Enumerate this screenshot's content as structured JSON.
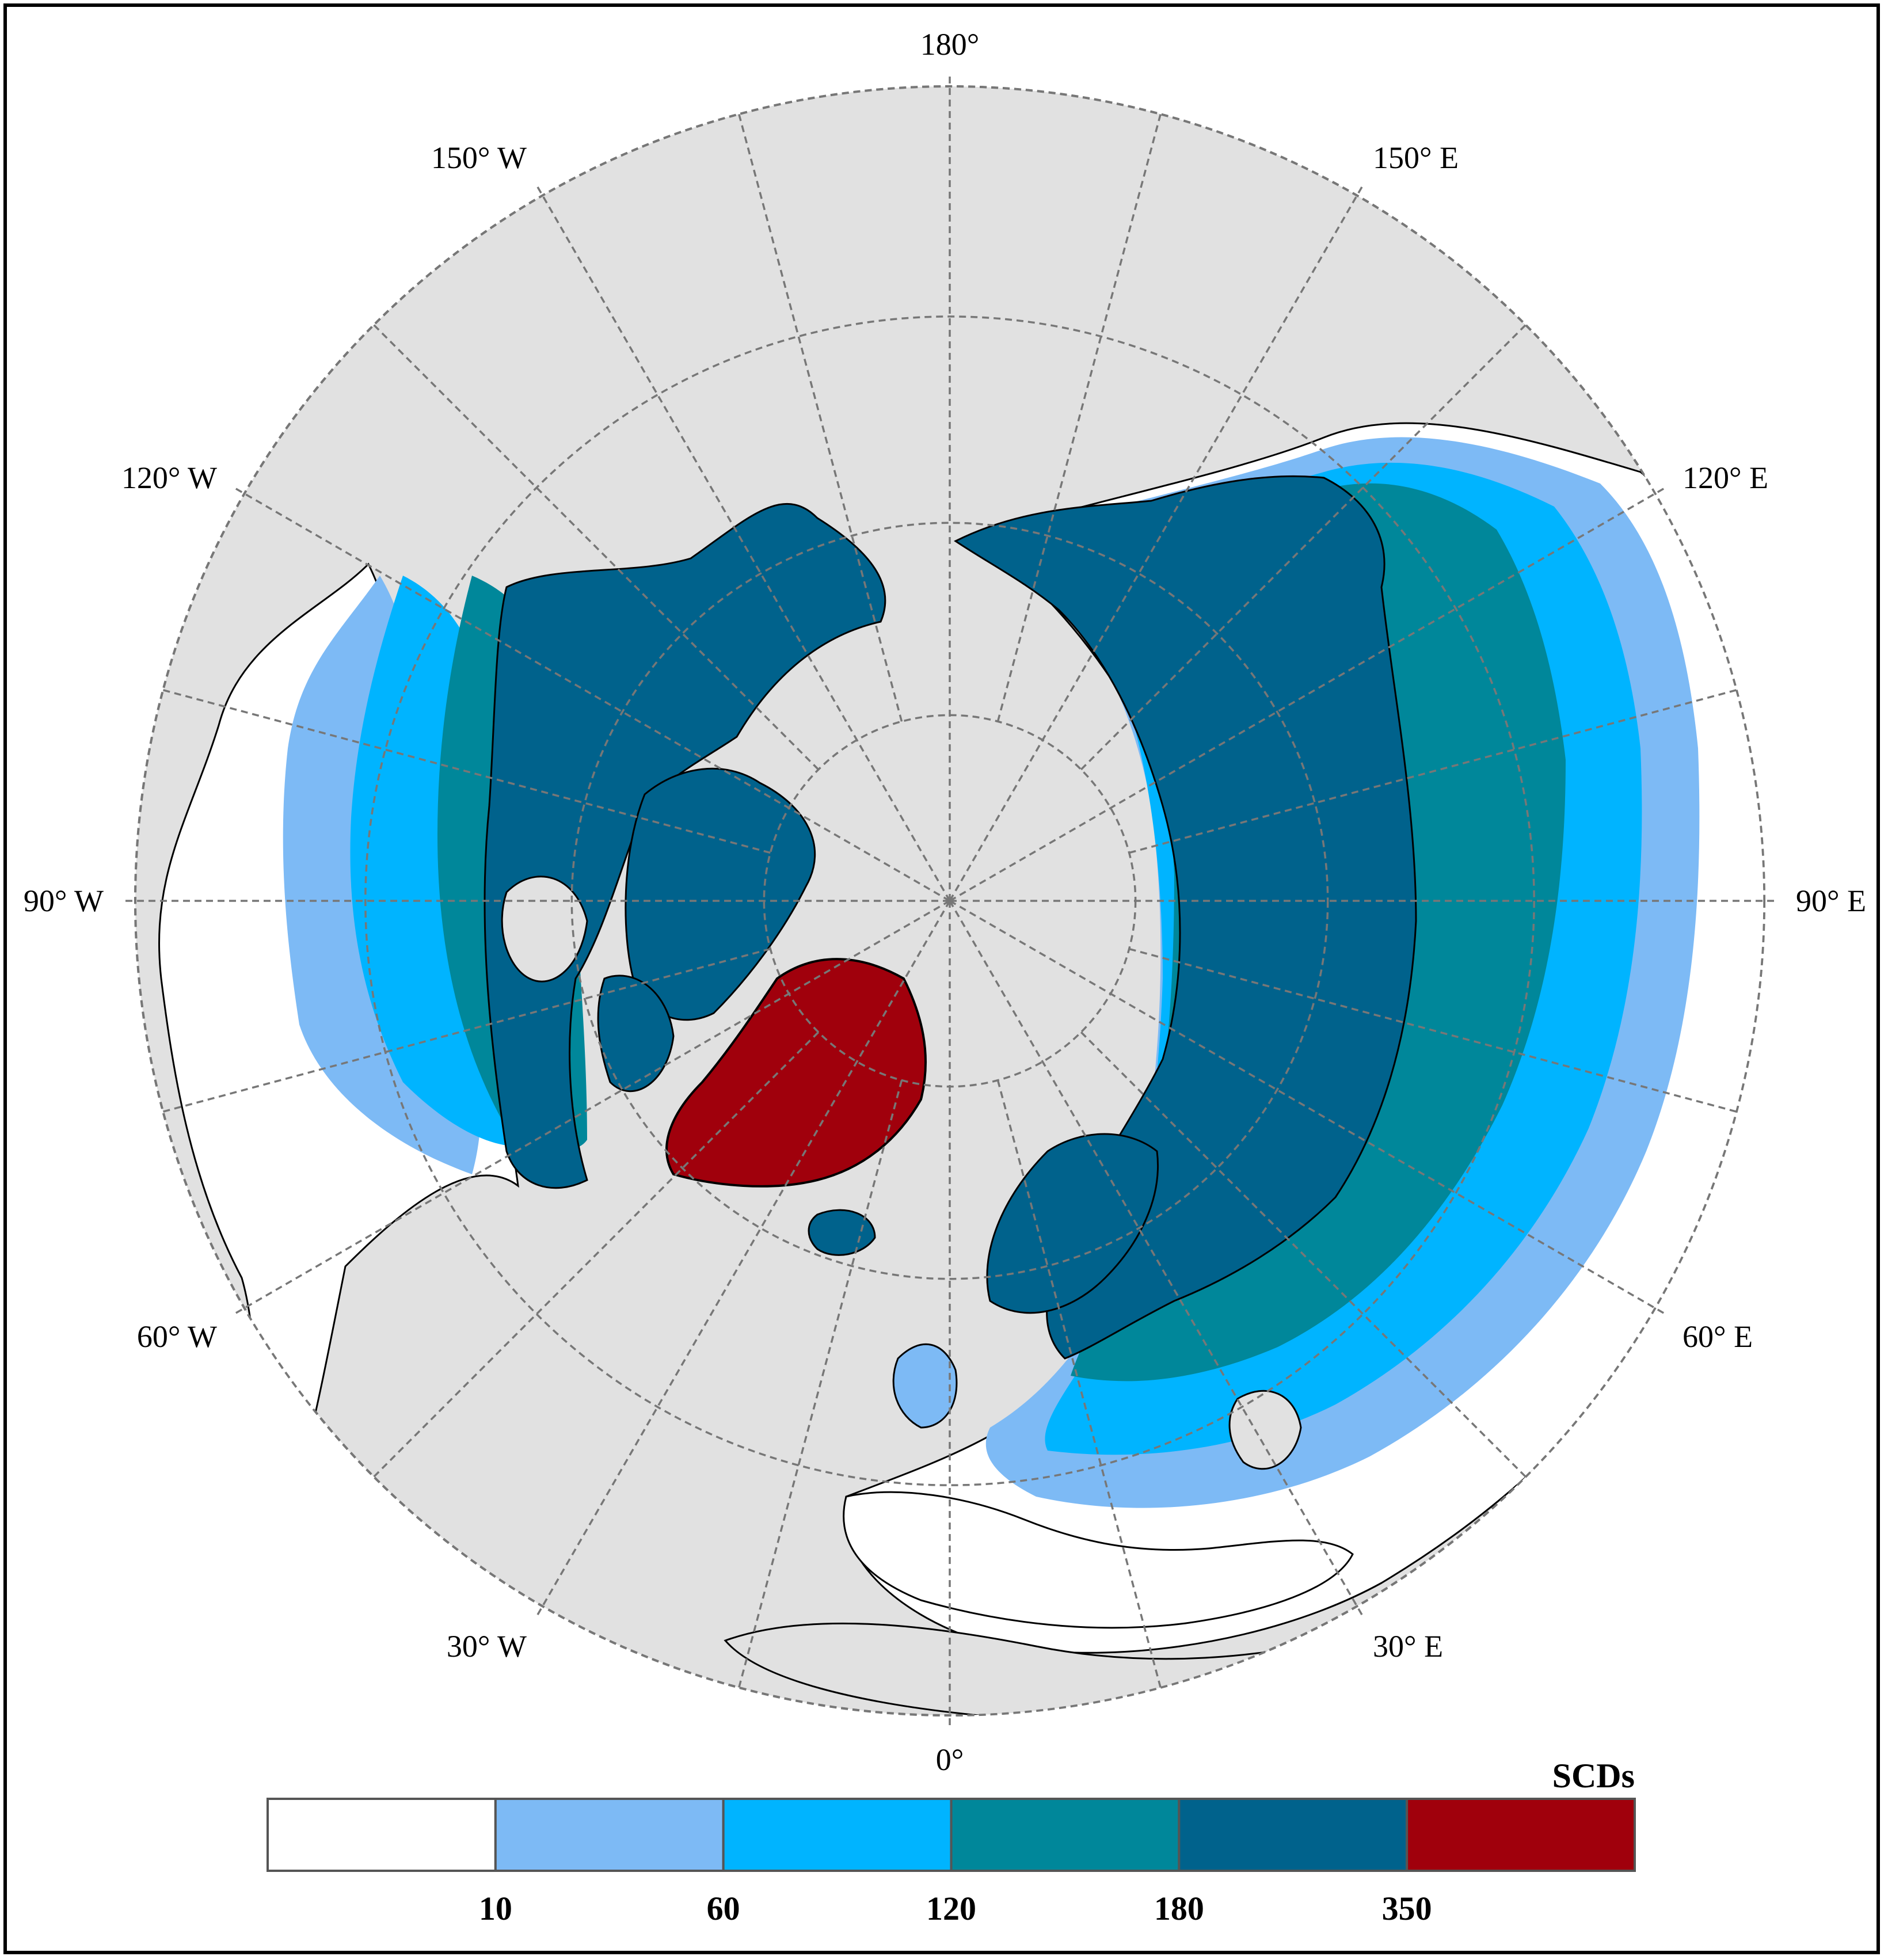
{
  "map": {
    "projection": "north-polar-stereographic",
    "ocean_color": "#e1e1e1",
    "grid_style": "dashed-grey",
    "meridian_labels": [
      {
        "text": "180°",
        "lon": 180
      },
      {
        "text": "150° E",
        "lon": 150
      },
      {
        "text": "120° E",
        "lon": 120
      },
      {
        "text": "90° E",
        "lon": 90
      },
      {
        "text": "60° E",
        "lon": 60
      },
      {
        "text": "30° E",
        "lon": 30
      },
      {
        "text": "0°",
        "lon": 0
      },
      {
        "text": "30° W",
        "lon": -30
      },
      {
        "text": "60° W",
        "lon": -60
      },
      {
        "text": "90° W",
        "lon": -90
      },
      {
        "text": "120° W",
        "lon": -120
      },
      {
        "text": "150° W",
        "lon": -150
      }
    ],
    "latitude_circles": [
      30,
      45,
      60,
      75
    ]
  },
  "legend": {
    "title": "SCDs",
    "classes": [
      {
        "color": "#ffffff"
      },
      {
        "color": "#7dbaf5"
      },
      {
        "color": "#00b4ff"
      },
      {
        "color": "#00879a"
      },
      {
        "color": "#00628c"
      },
      {
        "color": "#a0000c"
      }
    ],
    "breaks": [
      "10",
      "60",
      "120",
      "180",
      "350"
    ]
  }
}
